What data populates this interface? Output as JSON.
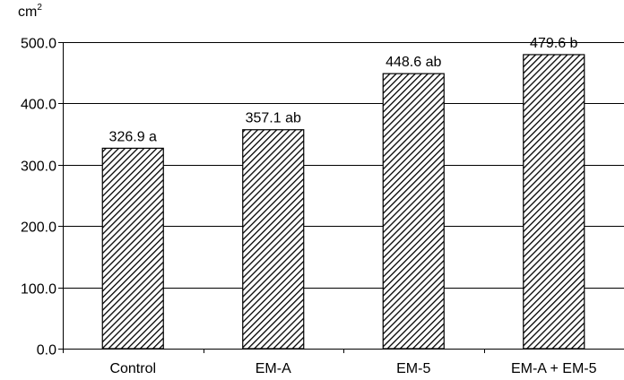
{
  "chart_data": {
    "type": "bar",
    "title": "",
    "xlabel": "",
    "ylabel": "cm2",
    "unit": {
      "base": "cm",
      "exponent": "2"
    },
    "categories": [
      "Control",
      "EM-A",
      "EM-5",
      "EM-A + EM-5"
    ],
    "values": [
      326.9,
      357.1,
      448.6,
      479.6
    ],
    "data_labels": [
      "326.9 a",
      "357.1 ab",
      "448.6 ab",
      "479.6 b"
    ],
    "ylim": [
      0,
      500
    ],
    "yticks": [
      0,
      100,
      200,
      300,
      400,
      500
    ],
    "ytick_labels": [
      "0.0",
      "100.0",
      "200.0",
      "300.0",
      "400.0",
      "500.0"
    ],
    "grid": true,
    "bar_fill": "hatched",
    "colors": {
      "bar_hatch": "#000000",
      "bar_background": "#ffffff",
      "grid": "#000000",
      "axis": "#000000"
    }
  }
}
